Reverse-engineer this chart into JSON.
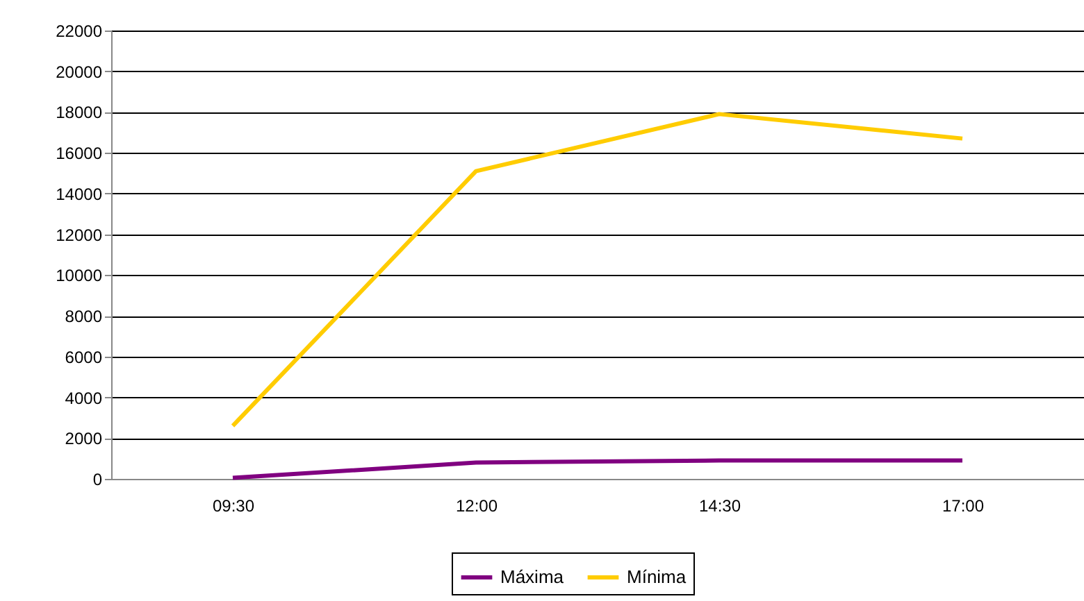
{
  "chart_data": {
    "type": "line",
    "categories": [
      "09:30",
      "12:00",
      "14:30",
      "17:00"
    ],
    "series": [
      {
        "name": "Máxima",
        "color": "#800080",
        "values": [
          50,
          800,
          900,
          900
        ]
      },
      {
        "name": "Mínima",
        "color": "#ffcc00",
        "values": [
          2600,
          15100,
          17900,
          16700
        ]
      }
    ],
    "ylim": [
      0,
      22000
    ],
    "yticks": [
      0,
      2000,
      4000,
      6000,
      8000,
      10000,
      12000,
      14000,
      16000,
      18000,
      20000,
      22000
    ],
    "grid": "y",
    "legend": "bottom",
    "marker": "none",
    "line_style": "solid"
  }
}
